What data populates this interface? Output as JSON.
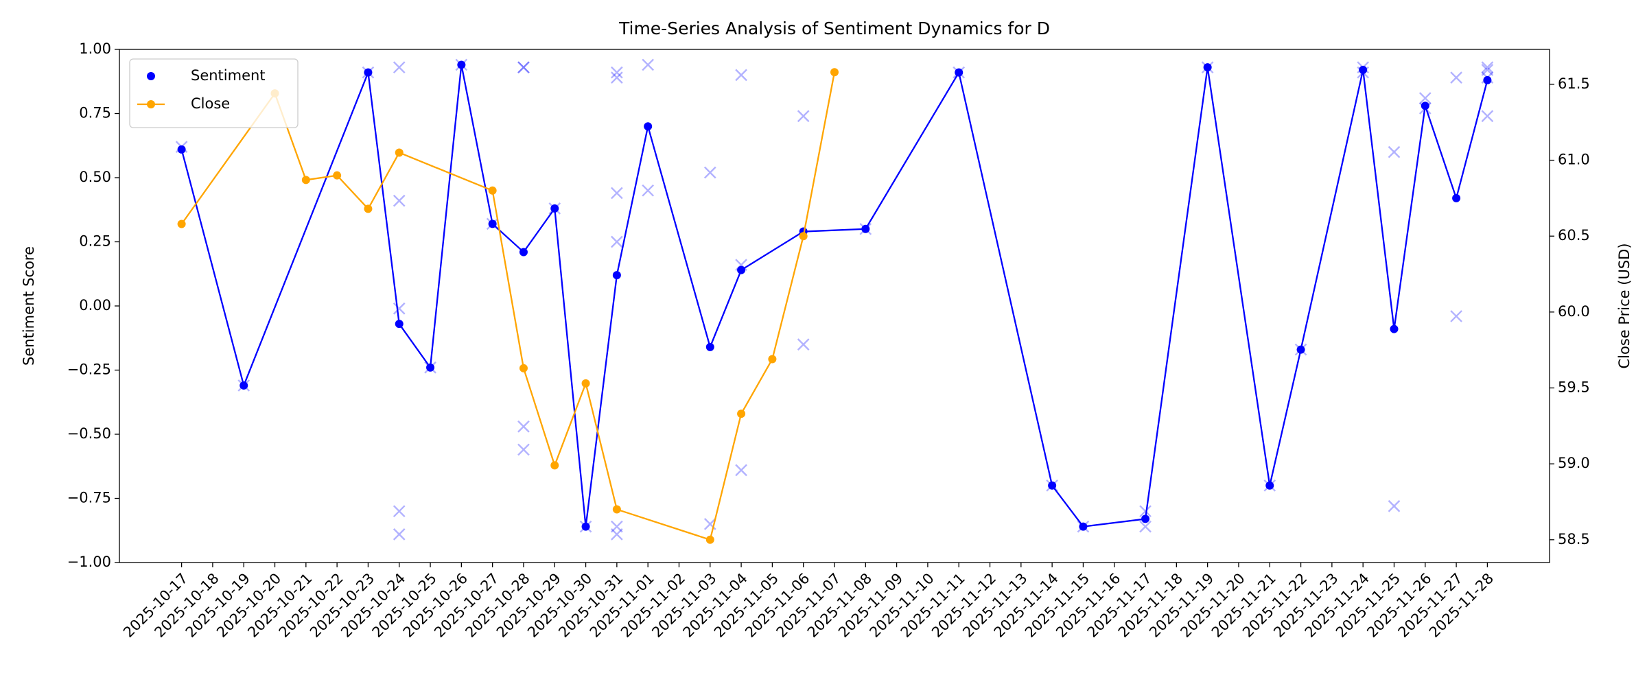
{
  "chart_data": {
    "type": "line",
    "title": "Time-Series Analysis of Sentiment Dynamics for D",
    "ylabel": "Sentiment Score",
    "y2label": "Close Price (USD)",
    "legend": "upper left",
    "xlim": [
      "2025-10-15",
      "2025-11-30"
    ],
    "xticks": [
      "2025-10-17",
      "2025-10-18",
      "2025-10-19",
      "2025-10-20",
      "2025-10-21",
      "2025-10-22",
      "2025-10-23",
      "2025-10-24",
      "2025-10-25",
      "2025-10-26",
      "2025-10-27",
      "2025-10-28",
      "2025-10-29",
      "2025-10-30",
      "2025-10-31",
      "2025-11-01",
      "2025-11-02",
      "2025-11-03",
      "2025-11-04",
      "2025-11-05",
      "2025-11-06",
      "2025-11-07",
      "2025-11-08",
      "2025-11-09",
      "2025-11-10",
      "2025-11-11",
      "2025-11-12",
      "2025-11-13",
      "2025-11-14",
      "2025-11-15",
      "2025-11-16",
      "2025-11-17",
      "2025-11-18",
      "2025-11-19",
      "2025-11-20",
      "2025-11-21",
      "2025-11-22",
      "2025-11-23",
      "2025-11-24",
      "2025-11-25",
      "2025-11-26",
      "2025-11-27",
      "2025-11-28"
    ],
    "ylim": [
      -1,
      1
    ],
    "yticks": [
      {
        "value": -1,
        "label": "−1.00"
      },
      {
        "value": -0.75,
        "label": "−0.75"
      },
      {
        "value": -0.5,
        "label": "−0.50"
      },
      {
        "value": -0.25,
        "label": "−0.25"
      },
      {
        "value": 0,
        "label": "0.00"
      },
      0.25,
      {
        "value": 0.5,
        "label": "0.50"
      },
      0.75,
      {
        "value": 1,
        "label": "1.00"
      }
    ],
    "y2lim": [
      58.35,
      61.73
    ],
    "y2ticks": [
      58.5,
      {
        "value": 59,
        "label": "59.0"
      },
      59.5,
      {
        "value": 60,
        "label": "60.0"
      },
      60.5,
      {
        "value": 61,
        "label": "61.0"
      },
      61.5
    ],
    "series": [
      {
        "type": "scatter",
        "marker": "x",
        "color": "#0000ff",
        "x": [
          "2025-10-17",
          "2025-10-19",
          "2025-10-23",
          "2025-10-24",
          "2025-10-24",
          "2025-10-24",
          "2025-10-24",
          "2025-10-24",
          "2025-10-25",
          "2025-10-26",
          "2025-10-27",
          "2025-10-28",
          "2025-10-28",
          "2025-10-28",
          "2025-10-28",
          "2025-10-29",
          "2025-10-30",
          "2025-10-31",
          "2025-10-31",
          "2025-10-31",
          "2025-10-31",
          "2025-10-31",
          "2025-10-31",
          "2025-11-01",
          "2025-11-01",
          "2025-11-03",
          "2025-11-03",
          "2025-11-04",
          "2025-11-04",
          "2025-11-04",
          "2025-11-06",
          "2025-11-06",
          "2025-11-08",
          "2025-11-11",
          "2025-11-14",
          "2025-11-15",
          "2025-11-17",
          "2025-11-17",
          "2025-11-19",
          "2025-11-21",
          "2025-11-22",
          "2025-11-24",
          "2025-11-24",
          "2025-11-25",
          "2025-11-25",
          "2025-11-26",
          "2025-11-26",
          "2025-11-27",
          "2025-11-27",
          "2025-11-28",
          "2025-11-28",
          "2025-11-28",
          "2025-11-28"
        ],
        "values": [
          0.62,
          -0.31,
          0.91,
          0.93,
          0.41,
          -0.01,
          -0.8,
          -0.89,
          -0.24,
          0.94,
          0.32,
          0.93,
          0.93,
          -0.47,
          -0.56,
          0.38,
          -0.86,
          0.91,
          0.89,
          0.44,
          0.25,
          -0.86,
          -0.89,
          0.94,
          0.45,
          0.52,
          -0.85,
          0.9,
          0.16,
          -0.64,
          0.74,
          -0.15,
          0.3,
          0.91,
          -0.7,
          -0.86,
          -0.8,
          -0.86,
          0.93,
          -0.7,
          -0.17,
          0.93,
          0.91,
          0.6,
          -0.78,
          0.81,
          0.77,
          0.89,
          -0.04,
          0.93,
          0.92,
          0.89,
          0.74
        ]
      },
      {
        "type": "line",
        "name": "Sentiment",
        "color": "#0000ff",
        "legend_style": "marker",
        "x": [
          "2025-10-17",
          "2025-10-19",
          "2025-10-23",
          "2025-10-24",
          "2025-10-25",
          "2025-10-26",
          "2025-10-27",
          "2025-10-28",
          "2025-10-29",
          "2025-10-30",
          "2025-10-31",
          "2025-11-01",
          "2025-11-03",
          "2025-11-04",
          "2025-11-06",
          "2025-11-08",
          "2025-11-11",
          "2025-11-14",
          "2025-11-15",
          "2025-11-17",
          "2025-11-19",
          "2025-11-21",
          "2025-11-22",
          "2025-11-24",
          "2025-11-25",
          "2025-11-26",
          "2025-11-27",
          "2025-11-28"
        ],
        "values": [
          0.61,
          -0.31,
          0.91,
          -0.07,
          -0.24,
          0.94,
          0.32,
          0.21,
          0.38,
          -0.86,
          0.12,
          0.7,
          -0.16,
          0.14,
          0.29,
          0.3,
          0.91,
          -0.7,
          -0.86,
          -0.83,
          0.93,
          -0.7,
          -0.17,
          0.92,
          -0.09,
          0.78,
          0.42,
          0.88
        ]
      },
      {
        "type": "line",
        "name": "Close",
        "color": "#ffa500",
        "axis": "y2",
        "legend_style": "line",
        "x": [
          "2025-10-17",
          "2025-10-20",
          "2025-10-21",
          "2025-10-22",
          "2025-10-23",
          "2025-10-24",
          "2025-10-27",
          "2025-10-28",
          "2025-10-29",
          "2025-10-30",
          "2025-10-31",
          "2025-11-03",
          "2025-11-04",
          "2025-11-05",
          "2025-11-06",
          "2025-11-07"
        ],
        "values": [
          60.58,
          61.44,
          60.87,
          60.9,
          60.68,
          61.05,
          60.8,
          59.63,
          58.99,
          59.53,
          58.7,
          58.5,
          59.33,
          59.69,
          60.5,
          61.58
        ]
      }
    ]
  }
}
